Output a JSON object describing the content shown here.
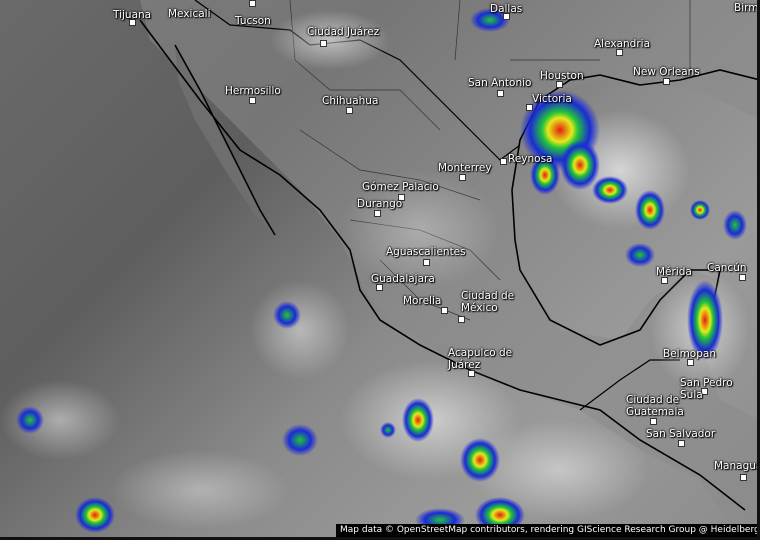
{
  "map": {
    "layer": "satellite infrared with precipitation",
    "storm_colors": {
      "light": "#1a2bd6",
      "moderate": "#22c43a",
      "heavy": "#e8e81a",
      "intense": "#e02010"
    },
    "cities": [
      {
        "name": "Tijuana",
        "label": "Tijuana"
      },
      {
        "name": "Mexicali",
        "label": "Mexicali"
      },
      {
        "name": "Tucson",
        "label": "Tucson"
      },
      {
        "name": "Ciudad Juárez",
        "label": "Ciudad Juárez"
      },
      {
        "name": "Dallas",
        "label": "Dallas"
      },
      {
        "name": "Birmingham",
        "label": "Birm"
      },
      {
        "name": "Alexandria",
        "label": "Alexandria"
      },
      {
        "name": "Houston",
        "label": "Houston"
      },
      {
        "name": "New Orleans",
        "label": "New Orleans"
      },
      {
        "name": "San Antonio",
        "label": "San Antonio"
      },
      {
        "name": "Victoria",
        "label": "Victoria"
      },
      {
        "name": "Hermosillo",
        "label": "Hermosillo"
      },
      {
        "name": "Chihuahua",
        "label": "Chihuahua"
      },
      {
        "name": "Monterrey",
        "label": "Monterrey"
      },
      {
        "name": "Reynosa",
        "label": "Reynosa"
      },
      {
        "name": "Gómez Palacio",
        "label": "Gómez Palacio"
      },
      {
        "name": "Durango",
        "label": "Durango"
      },
      {
        "name": "Aguascalientes",
        "label": "Aguascalientes"
      },
      {
        "name": "Guadalajara",
        "label": "Guadalajara"
      },
      {
        "name": "Morelia",
        "label": "Morelia"
      },
      {
        "name": "Ciudad de México",
        "label": "Ciudad de\nMéxico"
      },
      {
        "name": "Mérida",
        "label": "Mérida"
      },
      {
        "name": "Cancún",
        "label": "Cancún"
      },
      {
        "name": "Acapulco de Juárez",
        "label": "Acapulco de\nJuárez"
      },
      {
        "name": "Belmopan",
        "label": "Belmopan"
      },
      {
        "name": "San Pedro Sula",
        "label": "San Pedro\nSula"
      },
      {
        "name": "Ciudad de Guatemala",
        "label": "Ciudad de\nGuatemala"
      },
      {
        "name": "San Salvador",
        "label": "San Salvador"
      },
      {
        "name": "Managua",
        "label": "Managua"
      }
    ]
  },
  "attribution": "Map data © OpenStreetMap contributors, rendering GIScience Research Group @ Heidelberg University"
}
